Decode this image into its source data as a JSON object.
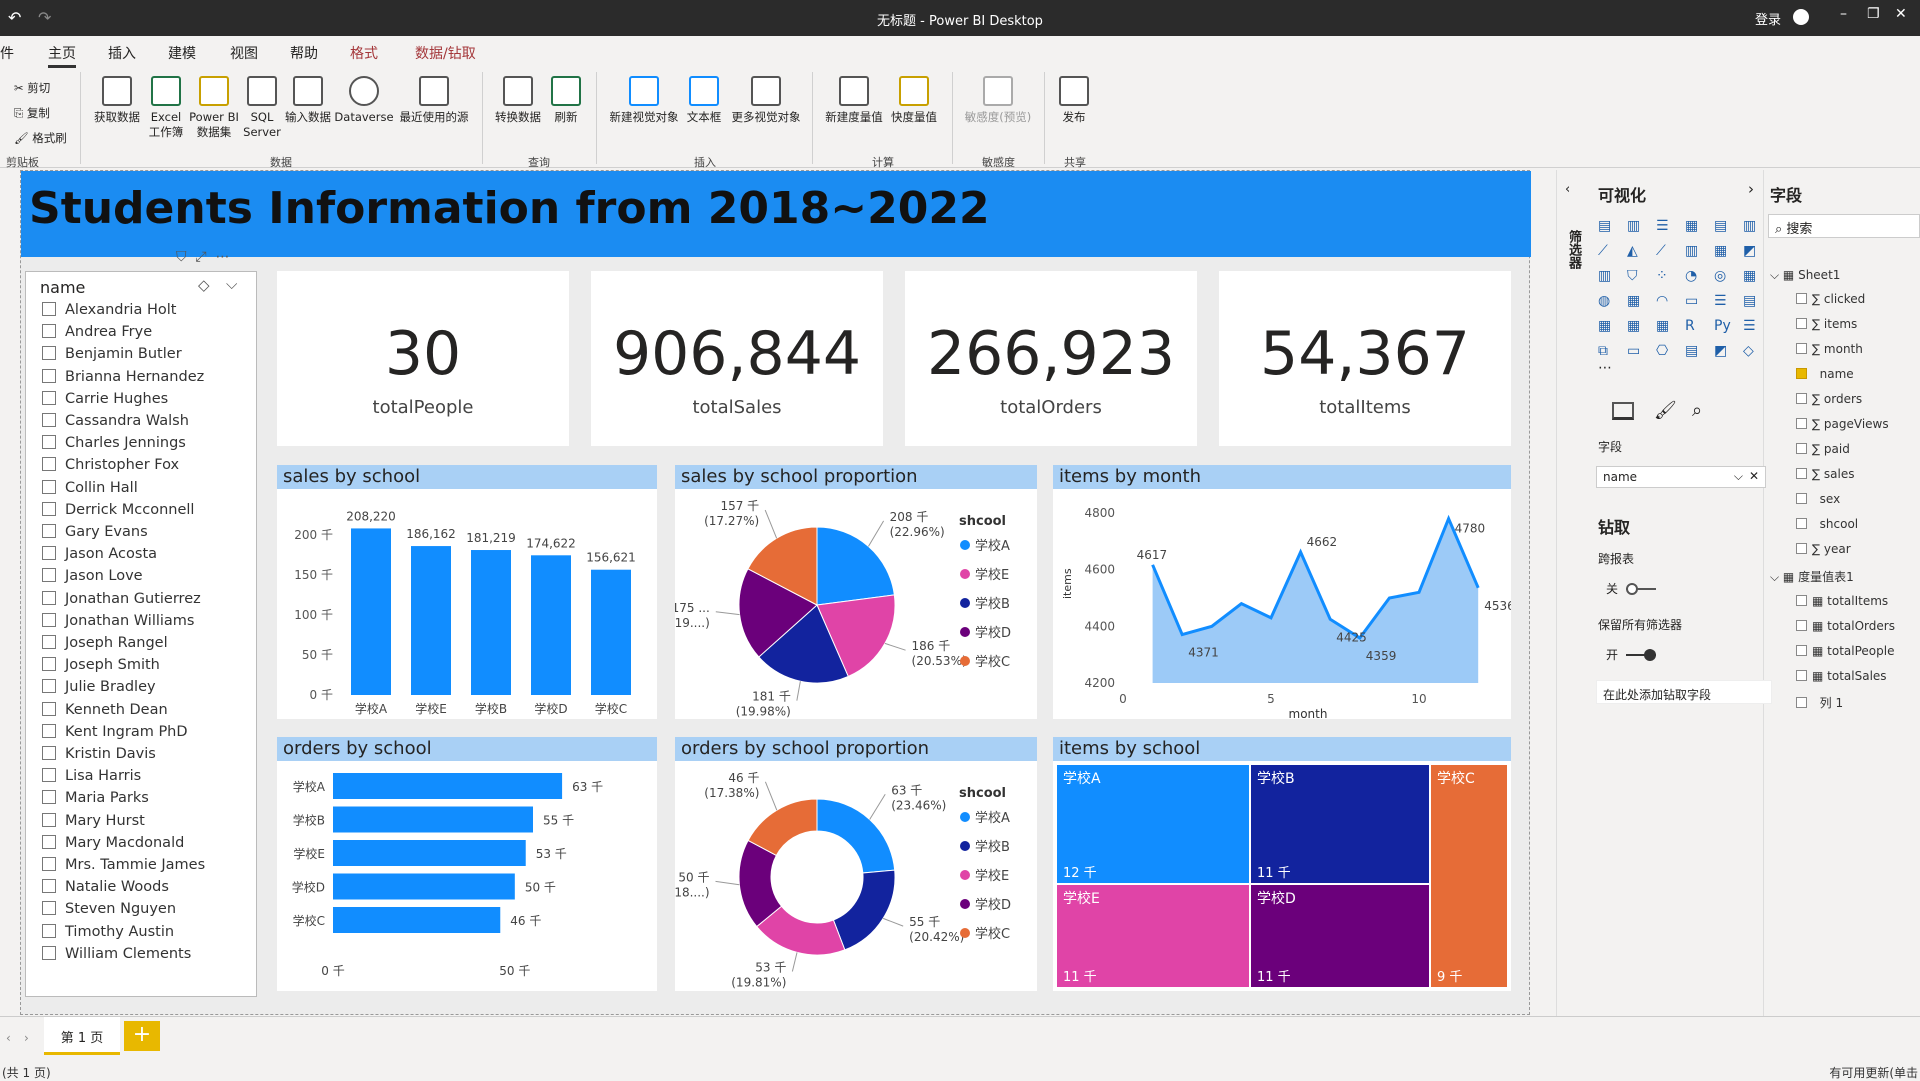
{
  "window": {
    "title": "无标题 - Power BI Desktop",
    "signin": "登录"
  },
  "tabs": [
    "主页",
    "插入",
    "建模",
    "视图",
    "帮助",
    "格式",
    "数据/钻取"
  ],
  "file_tab": "件",
  "ribbon": {
    "clipboard": [
      "剪切",
      "复制",
      "格式刷"
    ],
    "buttons": [
      "获取数据",
      "Excel 工作簿",
      "Power BI 数据集",
      "SQL Server",
      "输入数据",
      "Dataverse",
      "最近使用的源",
      "转换数据",
      "刷新",
      "新建视觉对象",
      "文本框",
      "更多视觉对象",
      "新建度量值",
      "快度量值",
      "敏感度(预览)",
      "发布"
    ],
    "groups": [
      "剪贴板",
      "数据",
      "查询",
      "插入",
      "计算",
      "敏感度",
      "共享"
    ]
  },
  "report": {
    "title": "Students Information from 2018~2022"
  },
  "slicer": {
    "header": "name",
    "items": [
      "Alexandria Holt",
      "Andrea Frye",
      "Benjamin Butler",
      "Brianna Hernandez",
      "Carrie Hughes",
      "Cassandra Walsh",
      "Charles Jennings",
      "Christopher Fox",
      "Collin Hall",
      "Derrick Mcconnell",
      "Gary Evans",
      "Jason Acosta",
      "Jason Love",
      "Jonathan Gutierrez",
      "Jonathan Williams",
      "Joseph Rangel",
      "Joseph Smith",
      "Julie Bradley",
      "Kenneth Dean",
      "Kent Ingram PhD",
      "Kristin Davis",
      "Lisa Harris",
      "Maria Parks",
      "Mary Hurst",
      "Mary Macdonald",
      "Mrs. Tammie James",
      "Natalie Woods",
      "Steven Nguyen",
      "Timothy Austin",
      "William Clements"
    ]
  },
  "cards": [
    {
      "value": "30",
      "label": "totalPeople"
    },
    {
      "value": "906,844",
      "label": "totalSales"
    },
    {
      "value": "266,923",
      "label": "totalOrders"
    },
    {
      "value": "54,367",
      "label": "totalItems"
    }
  ],
  "colors": {
    "A": "#118dff",
    "E": "#e044a7",
    "B": "#12239e",
    "D": "#6b007b",
    "C": "#e66c37"
  },
  "chart_data": [
    {
      "type": "bar",
      "title": "sales by school",
      "categories": [
        "学校A",
        "学校E",
        "学校B",
        "学校D",
        "学校C"
      ],
      "values": [
        208220,
        186162,
        181219,
        174622,
        156621
      ],
      "data_labels": [
        "208,220",
        "186,162",
        "181,219",
        "174,622",
        "156,621"
      ],
      "ytick_labels": [
        "0 千",
        "50 千",
        "100 千",
        "150 千",
        "200 千"
      ],
      "ylim": [
        0,
        200000
      ]
    },
    {
      "type": "pie",
      "title": "sales by school proportion",
      "legend_title": "shcool",
      "legend": [
        "学校A",
        "学校E",
        "学校B",
        "学校D",
        "学校C"
      ],
      "slices": [
        {
          "name": "学校A",
          "value": 208,
          "label": "208 千",
          "pct": "(22.96%)"
        },
        {
          "name": "学校E",
          "value": 186,
          "label": "186 千",
          "pct": "(20.53%)"
        },
        {
          "name": "学校B",
          "value": 181,
          "label": "181 千",
          "pct": "(19.98%)"
        },
        {
          "name": "学校D",
          "value": 175,
          "label": "175 ...",
          "pct": "(19....)"
        },
        {
          "name": "学校C",
          "value": 157,
          "label": "157 千",
          "pct": "(17.27%)"
        }
      ]
    },
    {
      "type": "area",
      "title": "items by month",
      "xlabel": "month",
      "ylabel": "items",
      "x": [
        1,
        2,
        3,
        4,
        5,
        6,
        7,
        8,
        9,
        10,
        11,
        12
      ],
      "values": [
        4617,
        4371,
        4400,
        4480,
        4430,
        4662,
        4425,
        4359,
        4500,
        4520,
        4780,
        4536
      ],
      "point_labels": {
        "1": "4617",
        "2": "4371",
        "6": "4662",
        "7": "4425",
        "8": "4359",
        "11": "4780",
        "12": "4536"
      },
      "ytick_labels": [
        "4200",
        "4400",
        "4600",
        "4800"
      ],
      "xtick_labels": [
        "0",
        "5",
        "10"
      ],
      "ylim": [
        4200,
        4800
      ]
    },
    {
      "type": "bar",
      "orientation": "horizontal",
      "title": "orders by school",
      "categories": [
        "学校A",
        "学校B",
        "学校E",
        "学校D",
        "学校C"
      ],
      "values": [
        63,
        55,
        53,
        50,
        46
      ],
      "data_labels": [
        "63 千",
        "55 千",
        "53 千",
        "50 千",
        "46 千"
      ],
      "xtick_labels": [
        "0 千",
        "50 千"
      ]
    },
    {
      "type": "pie",
      "style": "donut",
      "title": "orders by school proportion",
      "legend_title": "shcool",
      "legend": [
        "学校A",
        "学校B",
        "学校E",
        "学校D",
        "学校C"
      ],
      "slices": [
        {
          "name": "学校A",
          "value": 63,
          "label": "63 千",
          "pct": "(23.46%)"
        },
        {
          "name": "学校B",
          "value": 55,
          "label": "55 千",
          "pct": "(20.42%)"
        },
        {
          "name": "学校E",
          "value": 53,
          "label": "53 千",
          "pct": "(19.81%)"
        },
        {
          "name": "学校D",
          "value": 50,
          "label": "50 千",
          "pct": "(18....)"
        },
        {
          "name": "学校C",
          "value": 46,
          "label": "46 千",
          "pct": "(17.38%)"
        }
      ]
    },
    {
      "type": "treemap",
      "title": "items by school",
      "cells": [
        {
          "name": "学校A",
          "label": "12 千"
        },
        {
          "name": "学校B",
          "label": "11 千"
        },
        {
          "name": "学校C",
          "label": "9 千"
        },
        {
          "name": "学校E",
          "label": "11 千"
        },
        {
          "name": "学校D",
          "label": "11 千"
        }
      ]
    }
  ],
  "viz_pane": {
    "title": "可视化",
    "field_label": "字段",
    "field_value": "name",
    "drill": "钻取",
    "cross_report": "跨报表",
    "off": "关",
    "keep_filters": "保留所有筛选器",
    "on": "开",
    "add_drill": "在此处添加钻取字段",
    "filter_tab": "筛选器"
  },
  "fields_pane": {
    "title": "字段",
    "search": "搜索",
    "table1": "Sheet1",
    "sheet_fields": [
      "clicked",
      "items",
      "month",
      "name",
      "orders",
      "pageViews",
      "paid",
      "sales",
      "sex",
      "shcool",
      "year"
    ],
    "table2": "度量值表1",
    "measures": [
      "totalItems",
      "totalOrders",
      "totalPeople",
      "totalSales",
      "列 1"
    ]
  },
  "pages": {
    "current": "第 1 页",
    "add": "+"
  },
  "status": {
    "left": "(共 1 页)",
    "right": "有可用更新(单击"
  }
}
